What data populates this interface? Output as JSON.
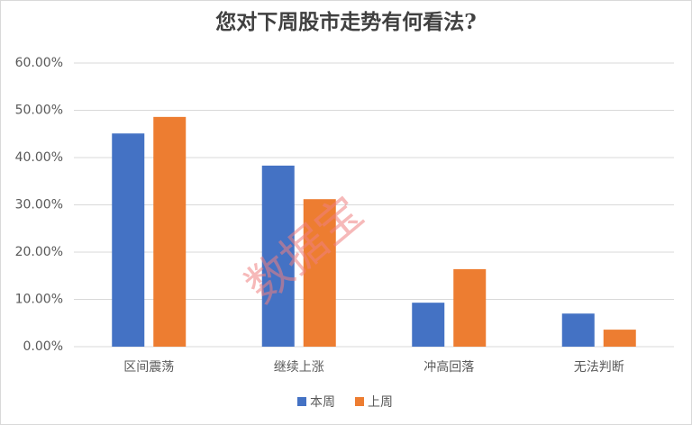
{
  "chart_data": {
    "type": "bar",
    "title": "您对下周股市走势有何看法?",
    "categories": [
      "区间震荡",
      "继续上涨",
      "冲高回落",
      "无法判断"
    ],
    "series": [
      {
        "name": "本周",
        "color": "#4472c4",
        "values": [
          45.1,
          38.3,
          9.3,
          7.0
        ]
      },
      {
        "name": "上周",
        "color": "#ed7d31",
        "values": [
          48.6,
          31.2,
          16.4,
          3.6
        ]
      }
    ],
    "ylim": [
      0,
      60
    ],
    "yticks": [
      {
        "value": 0,
        "label": "0.00%"
      },
      {
        "value": 10,
        "label": "10.00%"
      },
      {
        "value": 20,
        "label": "20.00%"
      },
      {
        "value": 30,
        "label": "30.00%"
      },
      {
        "value": 40,
        "label": "40.00%"
      },
      {
        "value": 50,
        "label": "50.00%"
      },
      {
        "value": 60,
        "label": "60.00%"
      }
    ],
    "grid": true,
    "legend": "bottom",
    "watermark": "数据宝"
  }
}
